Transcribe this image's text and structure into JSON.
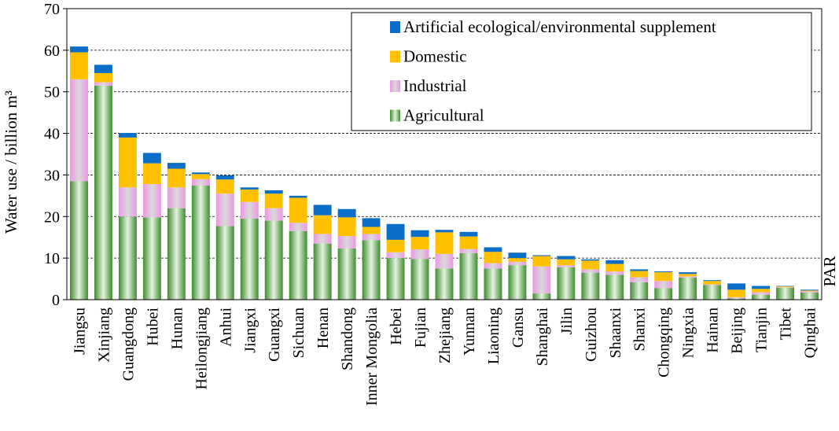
{
  "chart_data": {
    "type": "bar",
    "stacked": true,
    "ylabel": "Water use / billion m³",
    "ylim": [
      0,
      70
    ],
    "yticks": [
      0,
      10,
      20,
      30,
      40,
      50,
      60,
      70
    ],
    "grid": "horizontal dashed",
    "legend_position": "top-right",
    "xaxis_note": "PAR",
    "categories": [
      "Jiangsu",
      "Xinjiang",
      "Guangdong",
      "Hubei",
      "Hunan",
      "Heilongjiang",
      "Anhui",
      "Jiangxi",
      "Guangxi",
      "Sichuan",
      "Henan",
      "Shandong",
      "Inner Mongolia",
      "Hebei",
      "Fujian",
      "Zhejiang",
      "Yunnan",
      "Liaoning",
      "Gansu",
      "Shanghai",
      "Jilin",
      "Guizhou",
      "Shaanxi",
      "Shanxi",
      "Chongqing",
      "Ningxia",
      "Hainan",
      "Beijing",
      "Tianjin",
      "Tibet",
      "Qinghai"
    ],
    "series": [
      {
        "name": "Agricultural",
        "color": "#4a9a3a",
        "values": [
          28.5,
          51.5,
          20.0,
          19.8,
          22.0,
          27.5,
          17.7,
          19.5,
          19.0,
          16.5,
          13.5,
          12.3,
          14.3,
          10.0,
          9.8,
          7.5,
          11.2,
          7.5,
          8.3,
          1.5,
          7.8,
          6.5,
          6.0,
          4.2,
          2.8,
          5.3,
          3.5,
          0.3,
          1.2,
          2.9,
          1.7
        ]
      },
      {
        "name": "Industrial",
        "color": "#ee9be6",
        "values": [
          24.5,
          0.8,
          7.0,
          8.0,
          5.0,
          1.5,
          7.8,
          4.0,
          3.0,
          2.0,
          2.3,
          3.0,
          1.5,
          1.4,
          2.3,
          3.5,
          1.0,
          1.3,
          0.8,
          6.5,
          0.5,
          0.8,
          0.8,
          1.2,
          1.7,
          0.3,
          0.2,
          0.3,
          0.6,
          0.1,
          0.3
        ]
      },
      {
        "name": "Domestic",
        "color": "#ffc000",
        "values": [
          6.5,
          2.2,
          12.0,
          5.0,
          4.5,
          1.2,
          3.4,
          3.0,
          3.5,
          6.0,
          4.5,
          4.5,
          1.7,
          3.0,
          3.0,
          5.2,
          3.0,
          2.7,
          0.9,
          2.5,
          1.4,
          2.1,
          1.8,
          1.5,
          2.1,
          0.6,
          0.8,
          1.8,
          0.8,
          0.2,
          0.2
        ]
      },
      {
        "name": "Artificial ecological/environmental supplement",
        "color": "#0b6ec8",
        "values": [
          1.4,
          2.0,
          1.1,
          2.5,
          1.4,
          0.4,
          1.0,
          0.5,
          0.8,
          0.5,
          2.5,
          2.0,
          2.1,
          3.8,
          1.6,
          0.6,
          1.1,
          1.1,
          1.3,
          0.2,
          0.8,
          0.3,
          0.9,
          0.4,
          0.2,
          0.4,
          0.2,
          1.5,
          0.7,
          0.1,
          0.2
        ]
      }
    ]
  }
}
